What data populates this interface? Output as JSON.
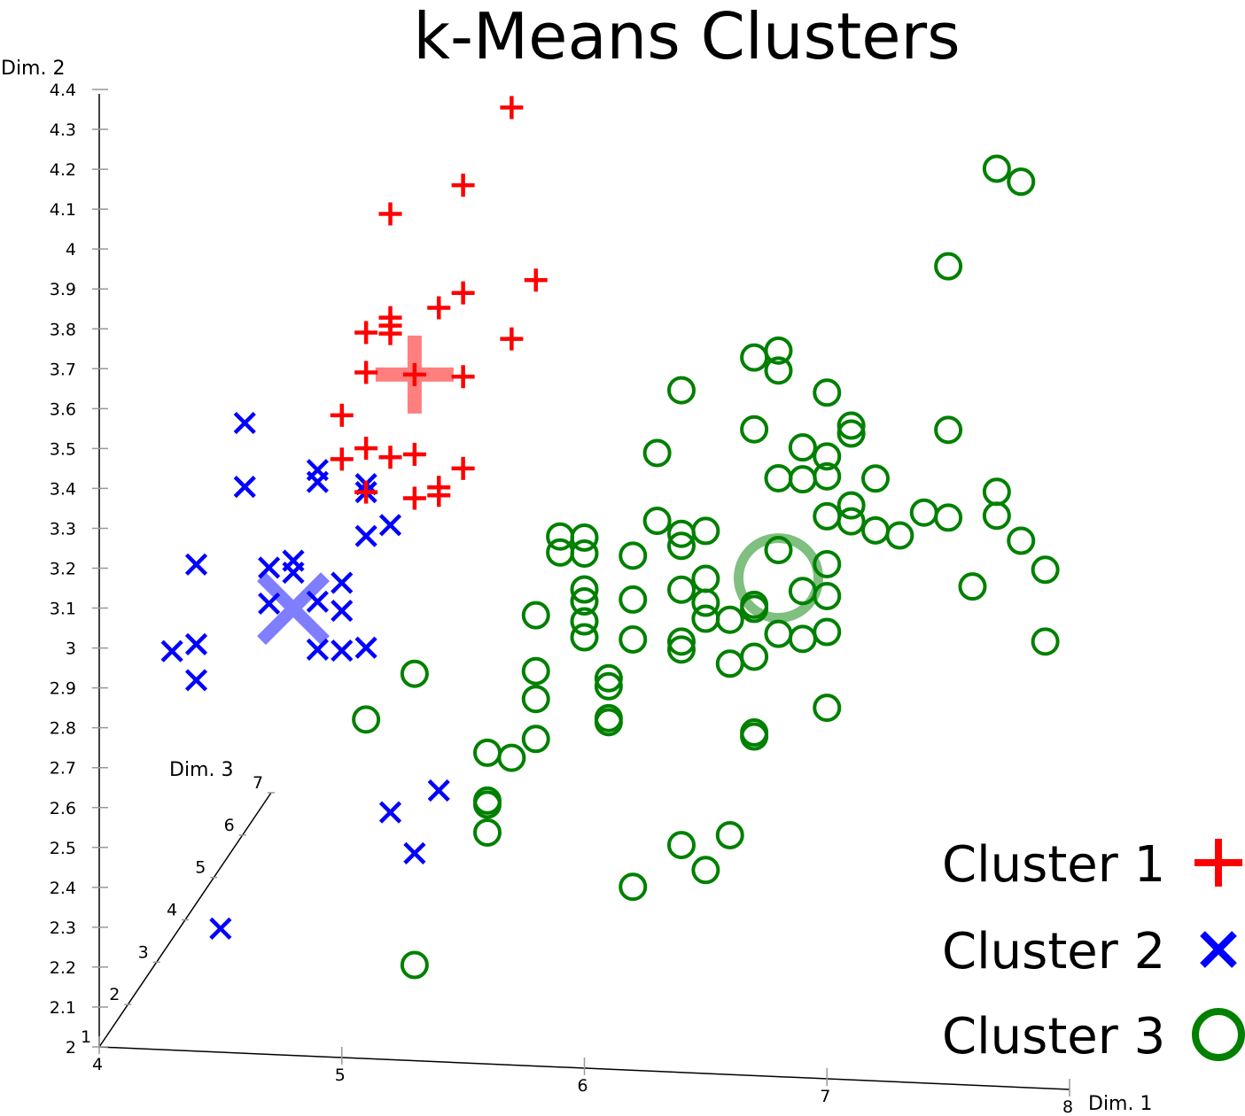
{
  "chart_data": {
    "type": "scatter",
    "projection": "3d",
    "title": "k-Means Clusters",
    "axes": {
      "x": {
        "label": "Dim. 1",
        "range": [
          4,
          8
        ],
        "ticks": [
          4,
          5,
          6,
          7,
          8
        ]
      },
      "y": {
        "label": "Dim. 2",
        "range": [
          2,
          4.4
        ],
        "ticks": [
          2,
          2.1,
          2.2,
          2.3,
          2.4,
          2.5,
          2.6,
          2.7,
          2.8,
          2.9,
          3,
          3.1,
          3.2,
          3.3,
          3.4,
          3.5,
          3.6,
          3.7,
          3.8,
          3.9,
          4,
          4.1,
          4.2,
          4.3,
          4.4
        ]
      },
      "z": {
        "label": "Dim. 3",
        "range": [
          1,
          7
        ],
        "ticks": [
          1,
          2,
          3,
          4,
          5,
          6,
          7
        ]
      }
    },
    "grid": false,
    "legend": "bottom-right",
    "series": [
      {
        "name": "Cluster 1",
        "marker": "plus",
        "color": "#ff0000",
        "centroid": {
          "x": 5.3,
          "y": 3.72
        },
        "points": [
          {
            "x": 5.7,
            "y": 4.4
          },
          {
            "x": 5.5,
            "y": 4.2
          },
          {
            "x": 5.2,
            "y": 4.12
          },
          {
            "x": 5.8,
            "y": 3.97
          },
          {
            "x": 5.5,
            "y": 3.93
          },
          {
            "x": 5.4,
            "y": 3.89
          },
          {
            "x": 5.2,
            "y": 3.86
          },
          {
            "x": 5.2,
            "y": 3.84
          },
          {
            "x": 5.1,
            "y": 3.82
          },
          {
            "x": 5.2,
            "y": 3.82
          },
          {
            "x": 5.7,
            "y": 3.82
          },
          {
            "x": 5.1,
            "y": 3.72
          },
          {
            "x": 5.3,
            "y": 3.72
          },
          {
            "x": 5.5,
            "y": 3.72
          },
          {
            "x": 5.0,
            "y": 3.61
          },
          {
            "x": 5.1,
            "y": 3.53
          },
          {
            "x": 5.0,
            "y": 3.5
          },
          {
            "x": 5.2,
            "y": 3.51
          },
          {
            "x": 5.3,
            "y": 3.52
          },
          {
            "x": 5.5,
            "y": 3.49
          },
          {
            "x": 5.1,
            "y": 3.42
          },
          {
            "x": 5.3,
            "y": 3.41
          },
          {
            "x": 5.4,
            "y": 3.42
          },
          {
            "x": 5.4,
            "y": 3.44
          }
        ]
      },
      {
        "name": "Cluster 2",
        "marker": "cross",
        "color": "#0000ff",
        "centroid": {
          "x": 4.8,
          "y": 3.12
        },
        "points": [
          {
            "x": 4.6,
            "y": 3.58
          },
          {
            "x": 4.6,
            "y": 3.42
          },
          {
            "x": 4.9,
            "y": 3.47
          },
          {
            "x": 4.9,
            "y": 3.44
          },
          {
            "x": 5.1,
            "y": 3.42
          },
          {
            "x": 5.1,
            "y": 3.44
          },
          {
            "x": 5.1,
            "y": 3.31
          },
          {
            "x": 5.2,
            "y": 3.34
          },
          {
            "x": 4.4,
            "y": 3.22
          },
          {
            "x": 4.7,
            "y": 3.22
          },
          {
            "x": 4.8,
            "y": 3.24
          },
          {
            "x": 4.8,
            "y": 3.21
          },
          {
            "x": 4.7,
            "y": 3.13
          },
          {
            "x": 5.0,
            "y": 3.19
          },
          {
            "x": 4.9,
            "y": 3.14
          },
          {
            "x": 5.0,
            "y": 3.12
          },
          {
            "x": 4.3,
            "y": 3.0
          },
          {
            "x": 4.4,
            "y": 3.02
          },
          {
            "x": 4.4,
            "y": 2.93
          },
          {
            "x": 4.9,
            "y": 3.02
          },
          {
            "x": 5.0,
            "y": 3.02
          },
          {
            "x": 5.1,
            "y": 3.03
          },
          {
            "x": 5.2,
            "y": 2.62
          },
          {
            "x": 5.3,
            "y": 2.52
          },
          {
            "x": 5.4,
            "y": 2.68
          },
          {
            "x": 4.5,
            "y": 2.31
          }
        ]
      },
      {
        "name": "Cluster 3",
        "marker": "circle",
        "color": "#008000",
        "centroid": {
          "x": 6.8,
          "y": 3.25
        },
        "points": [
          {
            "x": 7.7,
            "y": 4.3
          },
          {
            "x": 7.8,
            "y": 4.27
          },
          {
            "x": 7.5,
            "y": 4.05
          },
          {
            "x": 6.7,
            "y": 3.8
          },
          {
            "x": 6.8,
            "y": 3.82
          },
          {
            "x": 6.8,
            "y": 3.77
          },
          {
            "x": 6.4,
            "y": 3.71
          },
          {
            "x": 7.0,
            "y": 3.72
          },
          {
            "x": 7.1,
            "y": 3.64
          },
          {
            "x": 7.1,
            "y": 3.62
          },
          {
            "x": 7.5,
            "y": 3.64
          },
          {
            "x": 6.7,
            "y": 3.62
          },
          {
            "x": 6.9,
            "y": 3.58
          },
          {
            "x": 7.0,
            "y": 3.56
          },
          {
            "x": 6.3,
            "y": 3.55
          },
          {
            "x": 6.8,
            "y": 3.5
          },
          {
            "x": 6.9,
            "y": 3.5
          },
          {
            "x": 7.0,
            "y": 3.51
          },
          {
            "x": 7.2,
            "y": 3.51
          },
          {
            "x": 7.7,
            "y": 3.49
          },
          {
            "x": 7.7,
            "y": 3.43
          },
          {
            "x": 7.4,
            "y": 3.43
          },
          {
            "x": 7.5,
            "y": 3.42
          },
          {
            "x": 7.1,
            "y": 3.4
          },
          {
            "x": 7.2,
            "y": 3.38
          },
          {
            "x": 7.3,
            "y": 3.37
          },
          {
            "x": 7.1,
            "y": 3.44
          },
          {
            "x": 7.0,
            "y": 3.41
          },
          {
            "x": 6.3,
            "y": 3.38
          },
          {
            "x": 6.4,
            "y": 3.35
          },
          {
            "x": 6.5,
            "y": 3.36
          },
          {
            "x": 6.4,
            "y": 3.32
          },
          {
            "x": 5.9,
            "y": 3.33
          },
          {
            "x": 6.0,
            "y": 3.33
          },
          {
            "x": 5.9,
            "y": 3.29
          },
          {
            "x": 6.0,
            "y": 3.29
          },
          {
            "x": 6.2,
            "y": 3.29
          },
          {
            "x": 6.8,
            "y": 3.32
          },
          {
            "x": 7.0,
            "y": 3.29
          },
          {
            "x": 7.8,
            "y": 3.37
          },
          {
            "x": 7.9,
            "y": 3.3
          },
          {
            "x": 7.6,
            "y": 3.25
          },
          {
            "x": 6.4,
            "y": 3.21
          },
          {
            "x": 6.5,
            "y": 3.24
          },
          {
            "x": 6.9,
            "y": 3.22
          },
          {
            "x": 7.0,
            "y": 3.21
          },
          {
            "x": 6.0,
            "y": 3.2
          },
          {
            "x": 6.0,
            "y": 3.17
          },
          {
            "x": 6.2,
            "y": 3.18
          },
          {
            "x": 6.5,
            "y": 3.18
          },
          {
            "x": 6.7,
            "y": 3.18
          },
          {
            "x": 6.7,
            "y": 3.17
          },
          {
            "x": 5.8,
            "y": 3.13
          },
          {
            "x": 6.0,
            "y": 3.12
          },
          {
            "x": 6.5,
            "y": 3.14
          },
          {
            "x": 6.6,
            "y": 3.14
          },
          {
            "x": 6.8,
            "y": 3.11
          },
          {
            "x": 6.9,
            "y": 3.1
          },
          {
            "x": 7.0,
            "y": 3.12
          },
          {
            "x": 7.9,
            "y": 3.12
          },
          {
            "x": 6.0,
            "y": 3.08
          },
          {
            "x": 6.2,
            "y": 3.08
          },
          {
            "x": 6.4,
            "y": 3.08
          },
          {
            "x": 6.4,
            "y": 3.06
          },
          {
            "x": 6.6,
            "y": 3.03
          },
          {
            "x": 6.7,
            "y": 3.05
          },
          {
            "x": 5.8,
            "y": 2.99
          },
          {
            "x": 6.1,
            "y": 2.98
          },
          {
            "x": 6.1,
            "y": 2.96
          },
          {
            "x": 5.3,
            "y": 2.97
          },
          {
            "x": 5.8,
            "y": 2.92
          },
          {
            "x": 7.0,
            "y": 2.93
          },
          {
            "x": 6.1,
            "y": 2.88
          },
          {
            "x": 6.1,
            "y": 2.87
          },
          {
            "x": 6.7,
            "y": 2.86
          },
          {
            "x": 6.7,
            "y": 2.85
          },
          {
            "x": 5.1,
            "y": 2.85
          },
          {
            "x": 5.8,
            "y": 2.82
          },
          {
            "x": 5.6,
            "y": 2.78
          },
          {
            "x": 5.7,
            "y": 2.77
          },
          {
            "x": 5.6,
            "y": 2.66
          },
          {
            "x": 5.6,
            "y": 2.65
          },
          {
            "x": 5.6,
            "y": 2.58
          },
          {
            "x": 6.4,
            "y": 2.57
          },
          {
            "x": 6.6,
            "y": 2.6
          },
          {
            "x": 6.5,
            "y": 2.51
          },
          {
            "x": 6.2,
            "y": 2.46
          },
          {
            "x": 5.3,
            "y": 2.24
          }
        ]
      }
    ]
  }
}
